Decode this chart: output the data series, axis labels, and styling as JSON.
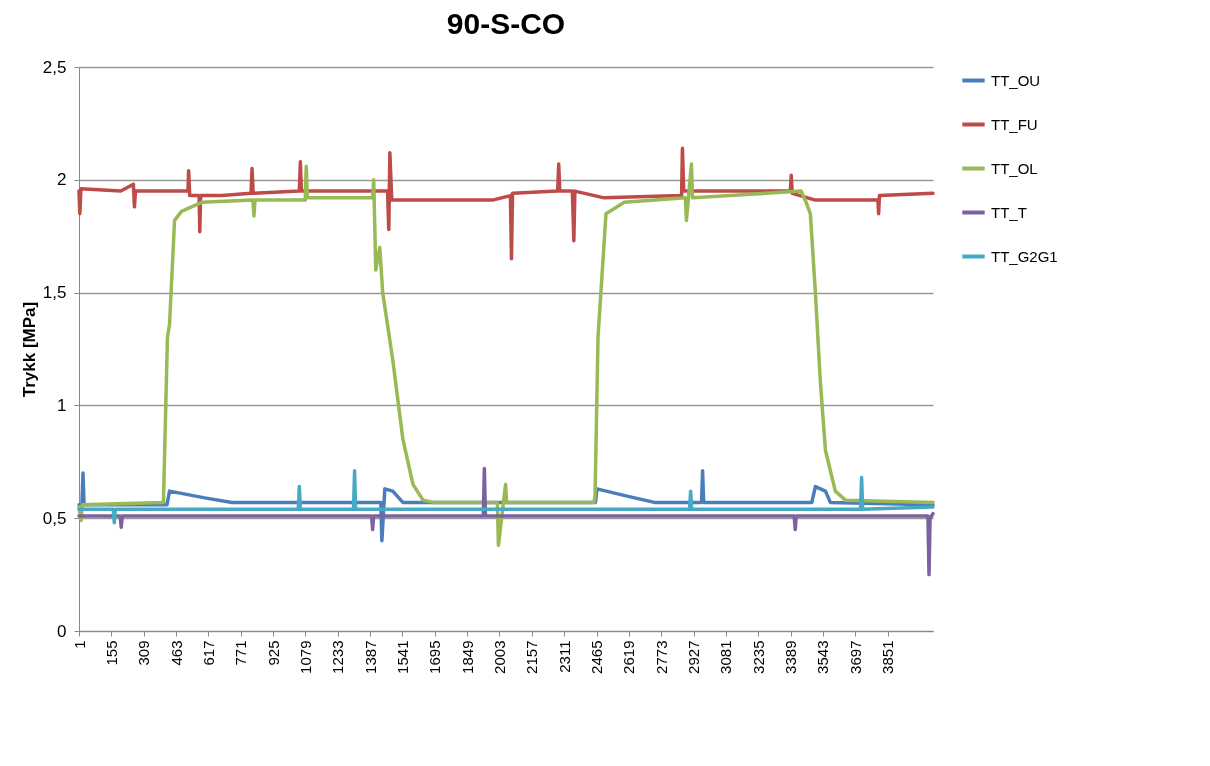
{
  "chart_data": {
    "type": "line",
    "title": "90-S-CO",
    "ylabel": "Trykk [MPa]",
    "xlim": [
      1,
      4067
    ],
    "xticks": [
      1,
      155,
      309,
      463,
      617,
      771,
      925,
      1079,
      1233,
      1387,
      1541,
      1695,
      1849,
      2003,
      2157,
      2311,
      2465,
      2619,
      2773,
      2927,
      3081,
      3235,
      3389,
      3543,
      3697,
      3851
    ],
    "ylim": [
      0,
      2.5
    ],
    "yticks": [
      0,
      {
        "value": 0.5,
        "label": "0,5"
      },
      1,
      {
        "value": 1.5,
        "label": "1,5"
      },
      2,
      {
        "value": 2.5,
        "label": "2,5"
      }
    ],
    "grid": "y",
    "legend": "right",
    "series": [
      {
        "name": "TT_OU",
        "color": "#4a7ebb",
        "x": [
          1,
          15,
          20,
          25,
          420,
          432,
          600,
          729,
          1438,
          1443,
          1457,
          1495,
          1543,
          2460,
          2467,
          2600,
          2740,
          2965,
          2970,
          2975,
          3490,
          3507,
          3555,
          3578,
          4067
        ],
        "values": [
          0.56,
          0.56,
          0.7,
          0.56,
          0.56,
          0.62,
          0.59,
          0.57,
          0.57,
          0.4,
          0.63,
          0.62,
          0.57,
          0.57,
          0.63,
          0.6,
          0.57,
          0.57,
          0.71,
          0.57,
          0.57,
          0.64,
          0.62,
          0.57,
          0.56
        ]
      },
      {
        "name": "TT_FU",
        "color": "#be4b48",
        "x": [
          1,
          5,
          10,
          200,
          260,
          265,
          270,
          520,
          523,
          528,
          573,
          576,
          580,
          681,
          820,
          825,
          830,
          1050,
          1055,
          1060,
          1470,
          1476,
          1481,
          1490,
          1970,
          2055,
          2060,
          2065,
          2280,
          2285,
          2290,
          2350,
          2357,
          2362,
          2501,
          2870,
          2874,
          2880,
          3388,
          3392,
          3397,
          3507,
          3805,
          3808,
          3812,
          4067
        ],
        "values": [
          1.95,
          1.85,
          1.96,
          1.95,
          1.98,
          1.88,
          1.95,
          1.95,
          2.04,
          1.93,
          1.93,
          1.77,
          1.93,
          1.93,
          1.94,
          2.05,
          1.94,
          1.95,
          2.08,
          1.95,
          1.95,
          1.78,
          2.12,
          1.91,
          1.91,
          1.93,
          1.65,
          1.94,
          1.95,
          2.07,
          1.95,
          1.95,
          1.73,
          1.95,
          1.92,
          1.93,
          2.14,
          1.95,
          1.95,
          2.02,
          1.94,
          1.91,
          1.91,
          1.85,
          1.93,
          1.94
        ]
      },
      {
        "name": "TT_OL",
        "color": "#98b954",
        "x": [
          1,
          11,
          16,
          400,
          403,
          422,
          432,
          456,
          489,
          585,
          829,
          834,
          839,
          1078,
          1083,
          1088,
          1399,
          1404,
          1414,
          1433,
          1447,
          1495,
          1543,
          1591,
          1639,
          1687,
          1993,
          1998,
          2032,
          2037,
          2453,
          2458,
          2472,
          2510,
          2597,
          2888,
          2893,
          2917,
          2922,
          3439,
          3463,
          3483,
          3507,
          3531,
          3555,
          3602,
          3650,
          4067
        ],
        "values": [
          0.55,
          0.49,
          0.56,
          0.57,
          0.57,
          1.3,
          1.36,
          1.82,
          1.86,
          1.9,
          1.91,
          1.84,
          1.91,
          1.91,
          2.06,
          1.92,
          1.92,
          2.0,
          1.6,
          1.7,
          1.5,
          1.2,
          0.85,
          0.65,
          0.58,
          0.57,
          0.57,
          0.38,
          0.65,
          0.57,
          0.57,
          0.6,
          1.3,
          1.85,
          1.9,
          1.92,
          1.82,
          2.07,
          1.92,
          1.95,
          1.9,
          1.85,
          1.5,
          1.1,
          0.8,
          0.62,
          0.58,
          0.57
        ]
      },
      {
        "name": "TT_T",
        "color": "#7d60a0",
        "x": [
          1,
          197,
          202,
          207,
          1394,
          1399,
          1404,
          1926,
          1931,
          1936,
          3406,
          3411,
          3416,
          4043,
          4048,
          4053,
          4067
        ],
        "values": [
          0.51,
          0.51,
          0.46,
          0.51,
          0.51,
          0.45,
          0.51,
          0.51,
          0.72,
          0.51,
          0.51,
          0.45,
          0.51,
          0.51,
          0.25,
          0.5,
          0.52
        ]
      },
      {
        "name": "TT_G2G1",
        "color": "#46aac5",
        "x": [
          1,
          164,
          169,
          174,
          1045,
          1050,
          1055,
          1308,
          1313,
          1318,
          2908,
          2913,
          2918,
          3722,
          3727,
          3732,
          4067
        ],
        "values": [
          0.54,
          0.54,
          0.48,
          0.54,
          0.54,
          0.64,
          0.54,
          0.54,
          0.71,
          0.54,
          0.54,
          0.62,
          0.54,
          0.54,
          0.68,
          0.54,
          0.55
        ]
      }
    ]
  }
}
